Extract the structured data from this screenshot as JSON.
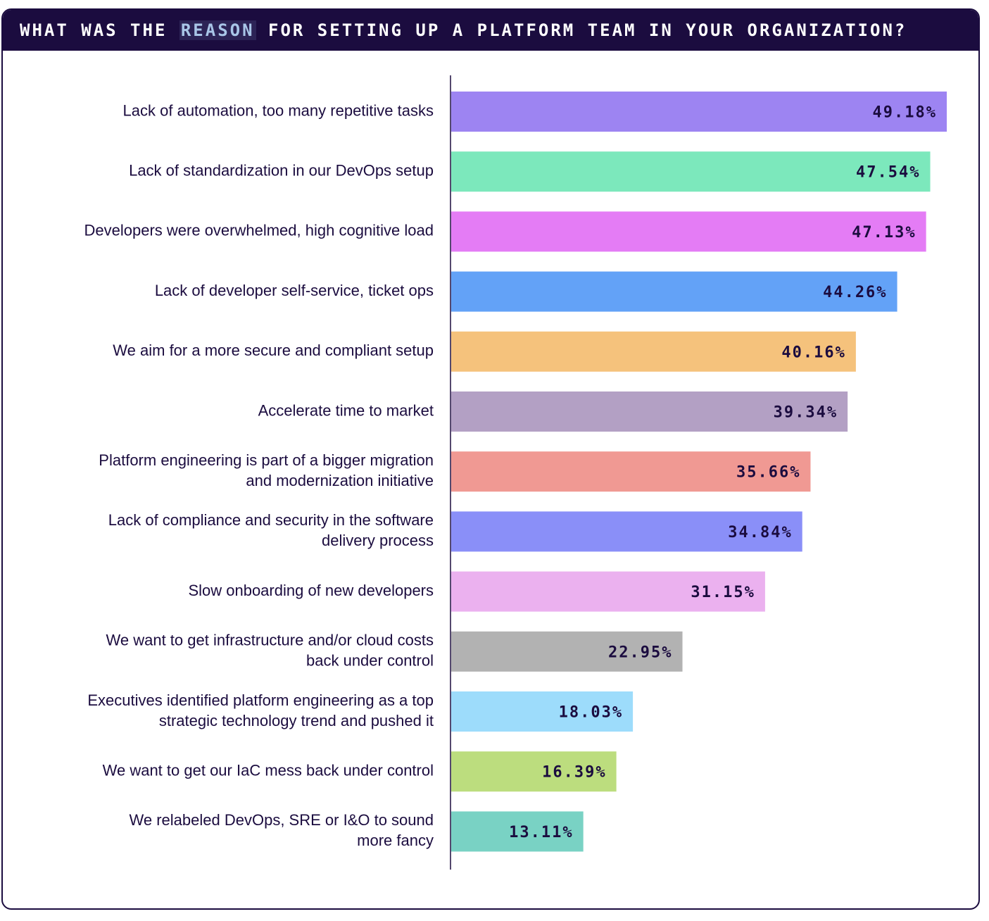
{
  "header": {
    "title_prefix": "WHAT WAS THE ",
    "title_highlight": "REASON",
    "title_suffix": " FOR SETTING UP A PLATFORM TEAM IN YOUR ORGANIZATION?"
  },
  "chart_data": {
    "type": "bar",
    "orientation": "horizontal",
    "title": "WHAT WAS THE REASON FOR SETTING UP A PLATFORM TEAM IN YOUR ORGANIZATION?",
    "xlabel": "",
    "ylabel": "",
    "xlim": [
      0,
      49.18
    ],
    "grid": false,
    "categories": [
      "Lack of automation, too many repetitive tasks",
      "Lack of standardization in our DevOps setup",
      "Developers were overwhelmed, high cognitive load",
      "Lack of developer self-service, ticket ops",
      "We aim for a more secure and compliant setup",
      "Accelerate time to market",
      "Platform engineering is part of a bigger migration and modernization initiative",
      "Lack of compliance and security in the software delivery process",
      "Slow onboarding of new developers",
      "We want to get infrastructure and/or cloud costs back under control",
      "Executives identified platform engineering as a top strategic technology trend and pushed it",
      "We want to get our IaC mess back under control",
      "We relabeled DevOps, SRE or I&O to sound more fancy"
    ],
    "label_lines": [
      [
        "Lack of automation, too many repetitive tasks"
      ],
      [
        "Lack of standardization in our DevOps setup"
      ],
      [
        "Developers were overwhelmed, high cognitive load"
      ],
      [
        "Lack of developer self-service, ticket ops"
      ],
      [
        "We aim for a more secure and compliant setup"
      ],
      [
        "Accelerate time to market"
      ],
      [
        "Platform engineering is part of a bigger migration",
        "and modernization initiative"
      ],
      [
        "Lack of compliance and security in the software",
        "delivery process"
      ],
      [
        "Slow onboarding of new developers"
      ],
      [
        "We want to get infrastructure and/or cloud costs",
        "back under control"
      ],
      [
        "Executives identified platform engineering as a top",
        "strategic technology trend and pushed it"
      ],
      [
        "We want to get our IaC mess back under control"
      ],
      [
        "We relabeled DevOps, SRE or I&O to sound",
        "more fancy"
      ]
    ],
    "values": [
      49.18,
      47.54,
      47.13,
      44.26,
      40.16,
      39.34,
      35.66,
      34.84,
      31.15,
      22.95,
      18.03,
      16.39,
      13.11
    ],
    "value_labels": [
      "49.18%",
      "47.54%",
      "47.13%",
      "44.26%",
      "40.16%",
      "39.34%",
      "35.66%",
      "34.84%",
      "31.15%",
      "22.95%",
      "18.03%",
      "16.39%",
      "13.11%"
    ],
    "colors": [
      "#9d84f2",
      "#7ce8bc",
      "#e47cf5",
      "#63a2f7",
      "#f5c27c",
      "#b3a0c4",
      "#f09993",
      "#8a8ff8",
      "#ebb1ef",
      "#b2b2b2",
      "#9ddcfb",
      "#bcdd7e",
      "#79d2c4"
    ]
  }
}
